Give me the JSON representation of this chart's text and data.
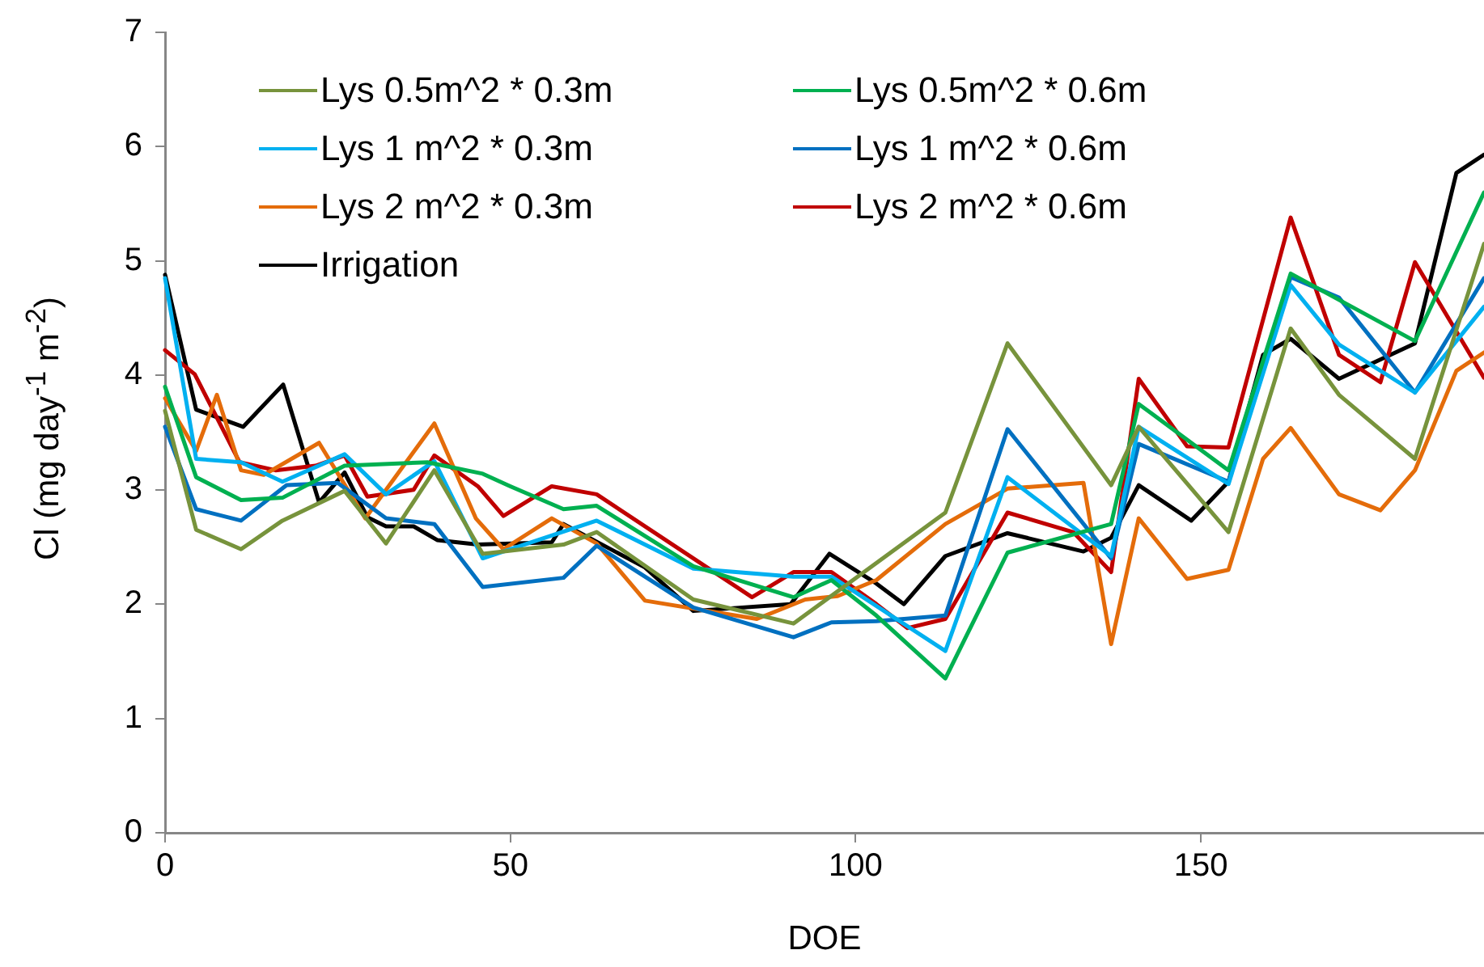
{
  "chart_data": {
    "type": "line",
    "xlabel": "DOE",
    "ylabel": "Cl (mg day$^{-1}$ m$^{-2}$)",
    "xlim": [
      0,
      191
    ],
    "xticks": [
      0,
      50,
      100,
      150
    ],
    "ylim": [
      0,
      7
    ],
    "yticks": [
      0,
      1,
      2,
      3,
      4,
      5,
      6,
      7
    ],
    "grid": false,
    "legend": "top left",
    "marker": "none",
    "line_style": "solid",
    "series": [
      {
        "name": "Lys 0.5m^2 * 0.3m",
        "color": "#77933c",
        "x": [
          0,
          4.5,
          11,
          17,
          26,
          32,
          39,
          46,
          57.7,
          62.5,
          76.5,
          91,
          113,
          122,
          137,
          141,
          154,
          163,
          170,
          181,
          191
        ],
        "values": [
          3.69,
          2.65,
          2.48,
          2.73,
          2.99,
          2.53,
          3.17,
          2.44,
          2.52,
          2.63,
          2.04,
          1.83,
          2.8,
          4.28,
          3.04,
          3.55,
          2.63,
          4.41,
          3.83,
          3.27,
          5.15
        ]
      },
      {
        "name": "Lys 0.5m^2 * 0.6m",
        "color": "#00b050",
        "x": [
          0,
          4.5,
          11,
          17,
          26,
          38,
          46,
          50,
          57.7,
          62.5,
          76.5,
          91,
          96.5,
          103,
          113,
          122,
          137,
          141,
          154,
          163,
          181,
          191
        ],
        "values": [
          3.9,
          3.11,
          2.91,
          2.93,
          3.21,
          3.24,
          3.14,
          3.03,
          2.83,
          2.86,
          2.33,
          2.06,
          2.21,
          1.9,
          1.35,
          2.45,
          2.7,
          3.75,
          3.17,
          4.89,
          4.3,
          5.6
        ]
      },
      {
        "name": "Lys 1 m^2 * 0.3m",
        "color": "#00b0f0",
        "x": [
          0,
          4.5,
          11,
          17,
          26,
          32,
          39,
          46,
          62.5,
          76.5,
          91,
          96.5,
          113,
          122,
          137,
          141,
          154,
          163,
          170,
          181,
          191
        ],
        "values": [
          4.85,
          3.27,
          3.24,
          3.07,
          3.31,
          2.96,
          3.25,
          2.4,
          2.73,
          2.31,
          2.24,
          2.24,
          1.59,
          3.11,
          2.42,
          3.55,
          3.05,
          4.79,
          4.27,
          3.85,
          4.6
        ]
      },
      {
        "name": "Lys 1 m^2 * 0.6m",
        "color": "#0070c0",
        "x": [
          0,
          4.5,
          11,
          17.6,
          25,
          32,
          39,
          46,
          57.7,
          62.5,
          76.5,
          91,
          96.5,
          103,
          113,
          122,
          137,
          141,
          154,
          163,
          170,
          181,
          191
        ],
        "values": [
          3.55,
          2.83,
          2.73,
          3.04,
          3.06,
          2.75,
          2.7,
          2.15,
          2.23,
          2.51,
          1.97,
          1.71,
          1.84,
          1.85,
          1.9,
          3.53,
          2.4,
          3.4,
          3.07,
          4.86,
          4.68,
          3.85,
          4.85
        ]
      },
      {
        "name": "Lys 2 m^2 * 0.3m",
        "color": "#e46c0a",
        "x": [
          0,
          4.5,
          7.5,
          11,
          14.3,
          22.3,
          29,
          39,
          45,
          49,
          56,
          62.5,
          69.5,
          85.7,
          92.7,
          97.4,
          103,
          113,
          122,
          133,
          137,
          141,
          148,
          154,
          159,
          163,
          170,
          176,
          181,
          187,
          191
        ],
        "values": [
          3.8,
          3.34,
          3.83,
          3.17,
          3.13,
          3.41,
          2.75,
          3.58,
          2.75,
          2.48,
          2.75,
          2.53,
          2.03,
          1.87,
          2.04,
          2.07,
          2.21,
          2.7,
          3.01,
          3.06,
          1.65,
          2.75,
          2.22,
          2.3,
          3.27,
          3.54,
          2.96,
          2.82,
          3.17,
          4.04,
          4.2
        ]
      },
      {
        "name": "Lys 2 m^2 * 0.6m",
        "color": "#c00000",
        "x": [
          0,
          4.3,
          10.8,
          16,
          21.8,
          26,
          29.3,
          36,
          39,
          45.3,
          49,
          56,
          62.5,
          85,
          91,
          96.5,
          103,
          107.5,
          113,
          122,
          131.5,
          137,
          141,
          148,
          154,
          163,
          170,
          176,
          181,
          191
        ],
        "values": [
          4.22,
          4.01,
          3.24,
          3.17,
          3.21,
          3.3,
          2.94,
          3.0,
          3.3,
          3.03,
          2.77,
          3.03,
          2.96,
          2.06,
          2.28,
          2.28,
          2.0,
          1.79,
          1.87,
          2.8,
          2.63,
          2.28,
          3.97,
          3.38,
          3.37,
          5.38,
          4.18,
          3.94,
          4.99,
          3.98
        ]
      },
      {
        "name": "Irrigation",
        "color": "#000000",
        "x": [
          0,
          4.5,
          11.3,
          17.1,
          22.3,
          26,
          29.3,
          32,
          36,
          39.4,
          45.3,
          56,
          57.7,
          69.5,
          76.5,
          90.6,
          96.2,
          103,
          107,
          113,
          122,
          133,
          137,
          141,
          148.6,
          154,
          159,
          163,
          170,
          181,
          187,
          191
        ],
        "values": [
          4.88,
          3.7,
          3.55,
          3.92,
          2.89,
          3.15,
          2.76,
          2.68,
          2.68,
          2.56,
          2.52,
          2.54,
          2.7,
          2.32,
          1.94,
          2.0,
          2.44,
          2.18,
          2.0,
          2.42,
          2.62,
          2.46,
          2.58,
          3.04,
          2.73,
          3.07,
          4.18,
          4.32,
          3.97,
          4.28,
          5.77,
          5.93
        ]
      }
    ]
  }
}
